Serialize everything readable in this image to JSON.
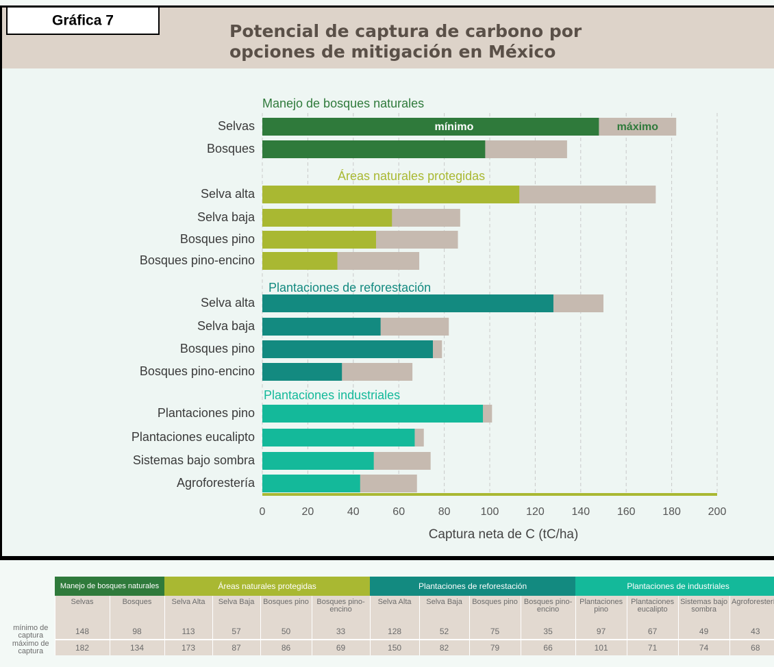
{
  "header": {
    "badge": "Gráfica 7",
    "title_lines": [
      "Potencial de captura de carbono por",
      "opciones de mitigación en México"
    ]
  },
  "chart_data": {
    "type": "bar",
    "x_label": "Captura neta de C  (tC/ha)",
    "xlim": [
      0,
      200
    ],
    "xticks": [
      0,
      20,
      40,
      60,
      80,
      100,
      120,
      140,
      160,
      180,
      200
    ],
    "grid": true,
    "annotations": {
      "min": "mínimo",
      "max": "máximo"
    },
    "max_color": "#c6bab0",
    "groups": [
      {
        "name": "Manejo de bosques naturales",
        "color": "#2f7a3b",
        "categories": [
          "Selvas",
          "Bosques"
        ],
        "min": [
          148,
          98
        ],
        "max": [
          182,
          134
        ]
      },
      {
        "name": "Áreas naturales protegidas",
        "color": "#a9b832",
        "categories": [
          "Selva alta",
          "Selva baja",
          "Bosques pino",
          "Bosques pino-encino"
        ],
        "min": [
          113,
          57,
          50,
          33
        ],
        "max": [
          173,
          87,
          86,
          69
        ]
      },
      {
        "name": "Plantaciones de reforestación",
        "color": "#138a80",
        "categories": [
          "Selva alta",
          "Selva baja",
          "Bosques pino",
          "Bosques pino-encino"
        ],
        "min": [
          128,
          52,
          75,
          35
        ],
        "max": [
          150,
          82,
          79,
          66
        ]
      },
      {
        "name": "Plantaciones industriales",
        "color": "#14b99a",
        "categories": [
          "Plantaciones pino",
          "Plantaciones eucalipto",
          "Sistemas bajo sombra",
          "Agroforestería"
        ],
        "min": [
          97,
          67,
          49,
          43
        ],
        "max": [
          101,
          71,
          74,
          68
        ]
      }
    ]
  },
  "table": {
    "groups": [
      "Manejo de bosques naturales",
      "Áreas naturales protegidas",
      "Plantaciones de reforestación",
      "Plantaciones de industriales"
    ],
    "columns": [
      [
        "Selvas",
        "Bosques"
      ],
      [
        "Selva Alta",
        "Selva Baja",
        "Bosques pino",
        "Bosques pino-encino"
      ],
      [
        "Selva Alta",
        "Selva Baja",
        "Bosques pino",
        "Bosques pino-encino"
      ],
      [
        "Plantaciones pino",
        "Plantaciones eucalipto",
        "Sistemas bajo sombra",
        "Agroforestería"
      ]
    ],
    "row_labels": [
      "mínimo de captura",
      "máximo de captura"
    ]
  }
}
